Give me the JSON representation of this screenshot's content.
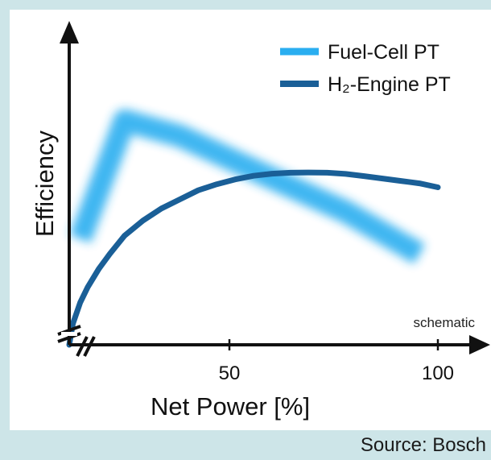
{
  "chart_data": {
    "type": "line",
    "xlabel": "Net Power [%]",
    "ylabel": "Efficiency",
    "xlim": [
      0,
      100
    ],
    "x_ticks": [
      {
        "value": 50,
        "label": "50"
      },
      {
        "value": 100,
        "label": "100"
      }
    ],
    "annotation": "schematic",
    "y_scale": "schematic (no values)",
    "legend_position": "top-right",
    "series": [
      {
        "name": "Fuel-Cell PT",
        "color": "#2aaef0",
        "style": "blurred band",
        "points": [
          [
            3,
            0.35
          ],
          [
            15,
            0.74
          ],
          [
            30,
            0.69
          ],
          [
            55,
            0.55
          ],
          [
            75,
            0.44
          ],
          [
            95,
            0.3
          ]
        ]
      },
      {
        "name": "H₂-Engine PT",
        "color": "#1a5f97",
        "style": "solid line",
        "points": [
          [
            0,
            0.0
          ],
          [
            1,
            0.07
          ],
          [
            3,
            0.14
          ],
          [
            5,
            0.19
          ],
          [
            8,
            0.25
          ],
          [
            11,
            0.3
          ],
          [
            15,
            0.36
          ],
          [
            20,
            0.41
          ],
          [
            25,
            0.45
          ],
          [
            30,
            0.48
          ],
          [
            35,
            0.51
          ],
          [
            40,
            0.53
          ],
          [
            45,
            0.546
          ],
          [
            50,
            0.558
          ],
          [
            55,
            0.565
          ],
          [
            60,
            0.568
          ],
          [
            65,
            0.569
          ],
          [
            70,
            0.568
          ],
          [
            75,
            0.564
          ],
          [
            80,
            0.557
          ],
          [
            85,
            0.549
          ],
          [
            90,
            0.541
          ],
          [
            95,
            0.533
          ],
          [
            100,
            0.52
          ]
        ]
      }
    ]
  },
  "source": "Source: Bosch"
}
